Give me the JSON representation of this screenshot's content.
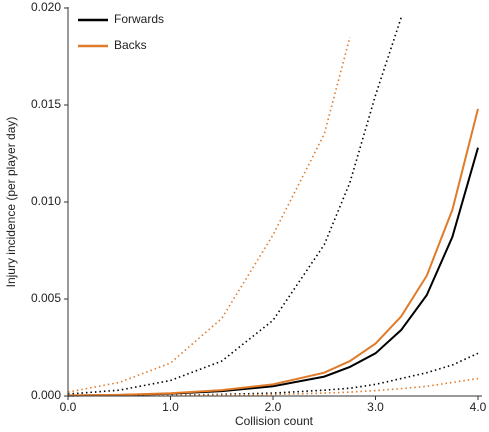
{
  "chart_data": {
    "type": "line",
    "x_label": "Collision count",
    "y_label": "Injury incidence (per player day)",
    "x": [
      0,
      0.5,
      1,
      1.5,
      2,
      2.5,
      2.75,
      3,
      3.25,
      3.5,
      3.75,
      4
    ],
    "series": [
      {
        "name": "Forwards",
        "color": "#000000",
        "values": [
          2e-05,
          5e-05,
          0.00012,
          0.00025,
          0.0005,
          0.001,
          0.0015,
          0.0022,
          0.0034,
          0.0052,
          0.0082,
          0.0128
        ],
        "lower": [
          1e-05,
          2e-05,
          4e-05,
          8e-05,
          0.00015,
          0.0003,
          0.0004,
          0.0006,
          0.0009,
          0.0012,
          0.0016,
          0.0022
        ],
        "upper": [
          0.0001,
          0.0003,
          0.0008,
          0.0018,
          0.0039,
          0.0078,
          0.011,
          0.0155,
          0.0195,
          null,
          null,
          null
        ]
      },
      {
        "name": "Backs",
        "color": "#e07b2a",
        "values": [
          3e-05,
          6e-05,
          0.00014,
          0.0003,
          0.0006,
          0.0012,
          0.0018,
          0.0027,
          0.0041,
          0.0062,
          0.0096,
          0.0148
        ],
        "lower": [
          1e-05,
          2e-05,
          3e-05,
          5e-05,
          8e-05,
          0.00015,
          0.0002,
          0.00028,
          0.00038,
          0.0005,
          0.0007,
          0.0009
        ],
        "upper": [
          0.0002,
          0.0007,
          0.0017,
          0.004,
          0.0083,
          0.0135,
          0.0185,
          null,
          null,
          null,
          null,
          null
        ]
      }
    ],
    "xlim": [
      0,
      4
    ],
    "xticks": [
      {
        "value": 0,
        "label": "0.0"
      },
      {
        "value": 1,
        "label": "1.0"
      },
      {
        "value": 2,
        "label": "2.0"
      },
      {
        "value": 3,
        "label": "3.0"
      },
      {
        "value": 4,
        "label": "4.0"
      }
    ],
    "ylim": [
      0,
      0.02
    ],
    "yticks": [
      {
        "value": 0,
        "label": "0.000"
      },
      {
        "value": 0.005,
        "label": "0.005"
      },
      {
        "value": 0.01,
        "label": "0.010"
      },
      {
        "value": 0.015,
        "label": "0.015"
      },
      {
        "value": 0.02,
        "label": "0.020"
      }
    ],
    "legend": "upper left",
    "grid": false
  }
}
